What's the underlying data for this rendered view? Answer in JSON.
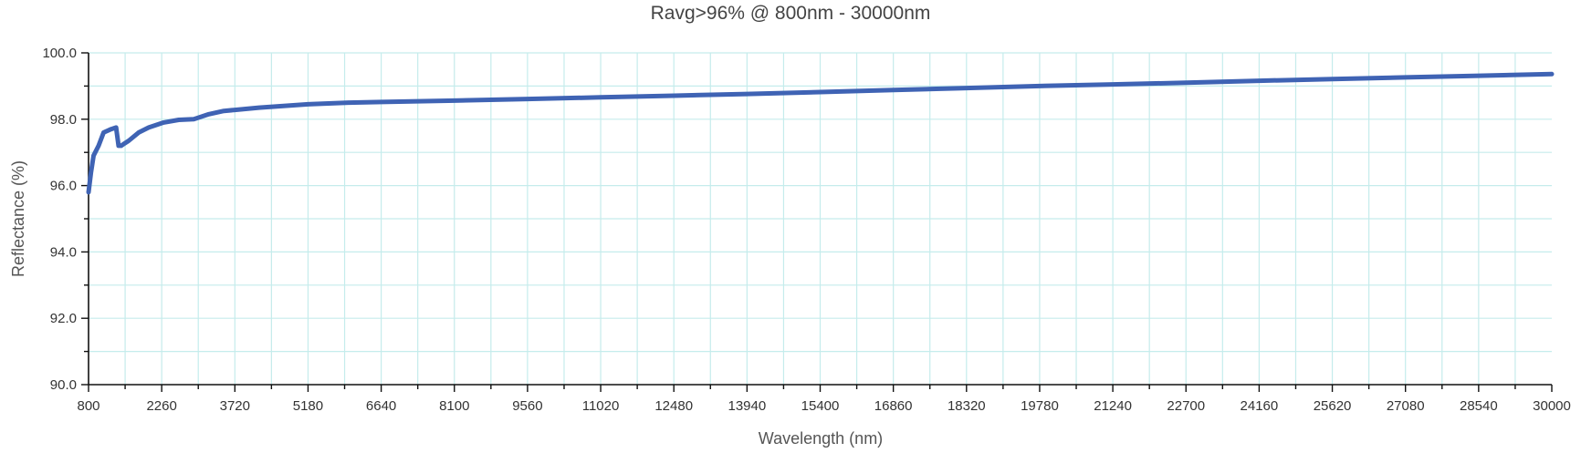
{
  "chart_data": {
    "type": "line",
    "title": "Ravg>96% @ 800nm - 30000nm",
    "xlabel": "Wavelength (nm)",
    "ylabel": "Reflectance (%)",
    "xlim": [
      800,
      30000
    ],
    "ylim": [
      90.0,
      100.0
    ],
    "x_ticks": [
      800,
      2260,
      3720,
      5180,
      6640,
      8100,
      9560,
      11020,
      12480,
      13940,
      15400,
      16860,
      18320,
      19780,
      21240,
      22700,
      24160,
      25620,
      27080,
      28540,
      30000
    ],
    "y_ticks": [
      "90.0",
      "92.0",
      "94.0",
      "96.0",
      "98.0",
      "100.0"
    ],
    "grid": true,
    "colors": {
      "line": "#3f63b4",
      "grid": "#c5ecec",
      "axis": "#111111"
    },
    "series": [
      {
        "x": [
          800,
          850,
          900,
          1000,
          1100,
          1250,
          1350,
          1400,
          1450,
          1500,
          1600,
          1800,
          2000,
          2300,
          2600,
          2900,
          3200,
          3500,
          3720,
          4200,
          5180,
          6000,
          6640,
          8100,
          9560,
          11020,
          12480,
          13940,
          15400,
          16860,
          18320,
          19780,
          21240,
          22700,
          24160,
          25620,
          27080,
          28540,
          30000
        ],
        "y": [
          95.8,
          96.4,
          96.9,
          97.2,
          97.6,
          97.7,
          97.75,
          97.2,
          97.2,
          97.25,
          97.35,
          97.6,
          97.75,
          97.9,
          97.98,
          98.0,
          98.15,
          98.25,
          98.28,
          98.35,
          98.45,
          98.5,
          98.52,
          98.56,
          98.61,
          98.66,
          98.71,
          98.76,
          98.82,
          98.88,
          98.94,
          99.0,
          99.05,
          99.1,
          99.16,
          99.21,
          99.26,
          99.31,
          99.36
        ]
      }
    ]
  }
}
